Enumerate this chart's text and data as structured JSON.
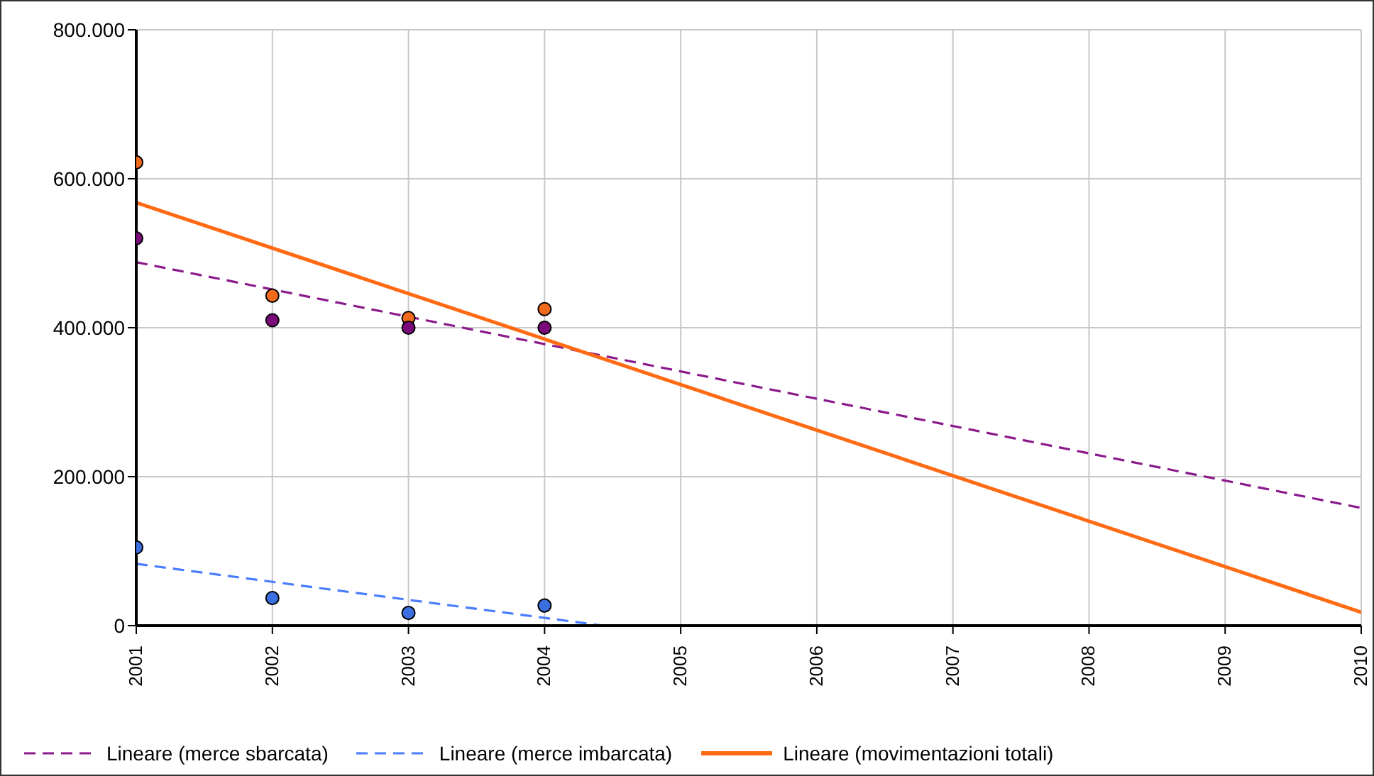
{
  "chart_data": {
    "type": "scatter",
    "x": [
      2001,
      2002,
      2003,
      2004
    ],
    "series": [
      {
        "color": "#f26b1d",
        "marker": "circle",
        "values": [
          622000,
          443000,
          413000,
          425000
        ]
      },
      {
        "color": "#7a0a7a",
        "marker": "circle",
        "values": [
          520000,
          410000,
          400000,
          400000
        ]
      },
      {
        "color": "#3b6fe0",
        "marker": "circle",
        "values": [
          105000,
          37000,
          17000,
          27000
        ]
      },
      {
        "type": "line",
        "name": "Lineare (merce sbarcata)",
        "color": "#8b1a8b",
        "line_style": "dashed",
        "marker": "none",
        "x": [
          2001,
          2010
        ],
        "values": [
          488000,
          158000
        ]
      },
      {
        "type": "line",
        "name": "Lineare (merce imbarcata)",
        "color": "#4a7dff",
        "line_style": "dashed",
        "marker": "none",
        "x": [
          2001,
          2004.43
        ],
        "values": [
          83000,
          0
        ]
      },
      {
        "type": "line",
        "name": "Lineare (movimentazioni totali)",
        "color": "#ff6a13",
        "line_style": "solid",
        "marker": "none",
        "x": [
          2001,
          2010
        ],
        "values": [
          568000,
          18000
        ]
      }
    ],
    "xlim": [
      2001,
      2010
    ],
    "xticks": [
      2001,
      2002,
      2003,
      2004,
      2005,
      2006,
      2007,
      2008,
      2009,
      2010
    ],
    "ylim": [
      0,
      800000
    ],
    "yticks": [
      {
        "value": 0,
        "label": "0"
      },
      {
        "value": 200000,
        "label": "200.000"
      },
      {
        "value": 400000,
        "label": "400.000"
      },
      {
        "value": 600000,
        "label": "600.000"
      },
      {
        "value": 800000,
        "label": "800.000"
      }
    ],
    "grid": true,
    "legend": "bottom"
  }
}
